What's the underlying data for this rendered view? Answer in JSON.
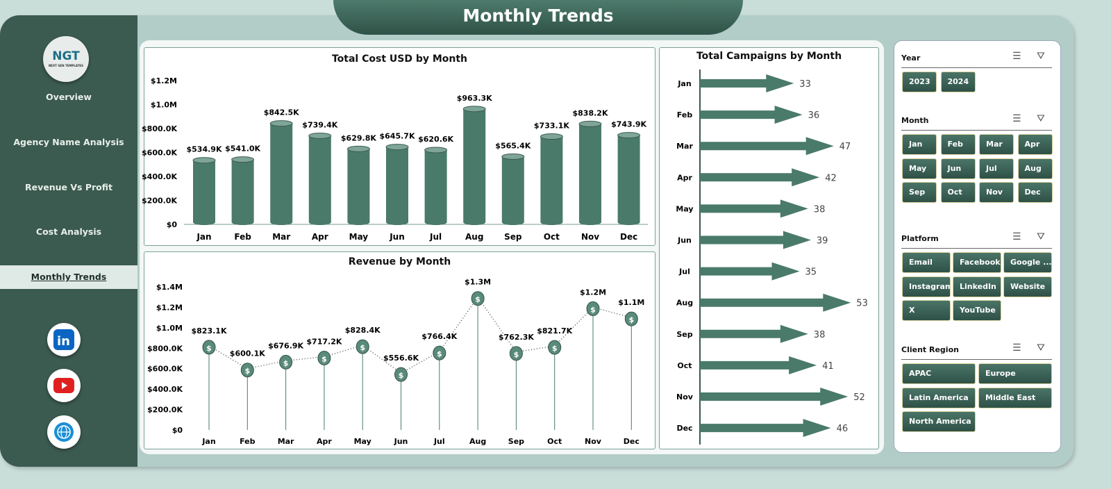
{
  "header": {
    "title": "Monthly Trends"
  },
  "sidebar": {
    "logo_text": "NGT",
    "logo_sub": "NEXT GEN TEMPLATES",
    "items": [
      {
        "label": "Overview"
      },
      {
        "label": "Agency Name Analysis"
      },
      {
        "label": "Revenue Vs Profit"
      },
      {
        "label": "Cost Analysis"
      },
      {
        "label": "Monthly Trends",
        "active": true
      }
    ],
    "social": [
      "linkedin-icon",
      "youtube-icon",
      "globe-icon"
    ]
  },
  "colors": {
    "dark_green": "#3b5a50",
    "bar": "#4a7a6a",
    "bg": "#b2cdc7"
  },
  "chart_data": [
    {
      "type": "bar",
      "title": "Total Cost USD by Month",
      "categories": [
        "Jan",
        "Feb",
        "Mar",
        "Apr",
        "May",
        "Jun",
        "Jul",
        "Aug",
        "Sep",
        "Oct",
        "Nov",
        "Dec"
      ],
      "values": [
        534.9,
        541.0,
        842.5,
        739.4,
        629.8,
        645.7,
        620.6,
        963.3,
        565.4,
        733.1,
        838.2,
        743.9
      ],
      "labels": [
        "$534.9K",
        "$541.0K",
        "$842.5K",
        "$739.4K",
        "$629.8K",
        "$645.7K",
        "$620.6K",
        "$963.3K",
        "$565.4K",
        "$733.1K",
        "$838.2K",
        "$743.9K"
      ],
      "unit": "thousand USD",
      "ylim": [
        0,
        1200
      ],
      "yticks": [
        "$0",
        "$200.0K",
        "$400.0K",
        "$600.0K",
        "$800.0K",
        "$1.0M",
        "$1.2M"
      ]
    },
    {
      "type": "line",
      "title": "Revenue by Month",
      "categories": [
        "Jan",
        "Feb",
        "Mar",
        "Apr",
        "May",
        "Jun",
        "Jul",
        "Aug",
        "Sep",
        "Oct",
        "Nov",
        "Dec"
      ],
      "values": [
        823.1,
        600.1,
        676.9,
        717.2,
        828.4,
        556.6,
        766.4,
        1300,
        762.3,
        821.7,
        1200,
        1100
      ],
      "labels": [
        "$823.1K",
        "$600.1K",
        "$676.9K",
        "$717.2K",
        "$828.4K",
        "$556.6K",
        "$766.4K",
        "$1.3M",
        "$762.3K",
        "$821.7K",
        "$1.2M",
        "$1.1M"
      ],
      "unit": "thousand USD",
      "ylim": [
        0,
        1400
      ],
      "yticks": [
        "$0",
        "$200.0K",
        "$400.0K",
        "$600.0K",
        "$800.0K",
        "$1.0M",
        "$1.2M",
        "$1.4M"
      ]
    },
    {
      "type": "bar",
      "orientation": "horizontal",
      "title": "Total Campaigns by Month",
      "categories": [
        "Jan",
        "Feb",
        "Mar",
        "Apr",
        "May",
        "Jun",
        "Jul",
        "Aug",
        "Sep",
        "Oct",
        "Nov",
        "Dec"
      ],
      "values": [
        33,
        36,
        47,
        42,
        38,
        39,
        35,
        53,
        38,
        41,
        52,
        46
      ]
    }
  ],
  "slicers": [
    {
      "title": "Year",
      "items": [
        "2023",
        "2024"
      ]
    },
    {
      "title": "Month",
      "items": [
        "Jan",
        "Feb",
        "Mar",
        "Apr",
        "May",
        "Jun",
        "Jul",
        "Aug",
        "Sep",
        "Oct",
        "Nov",
        "Dec"
      ]
    },
    {
      "title": "Platform",
      "items": [
        "Email",
        "Facebook",
        "Google ...",
        "Instagram",
        "LinkedIn",
        "Website",
        "X",
        "YouTube"
      ]
    },
    {
      "title": "Client Region",
      "items": [
        "APAC",
        "Europe",
        "Latin America",
        "Middle East",
        "North America"
      ]
    }
  ]
}
